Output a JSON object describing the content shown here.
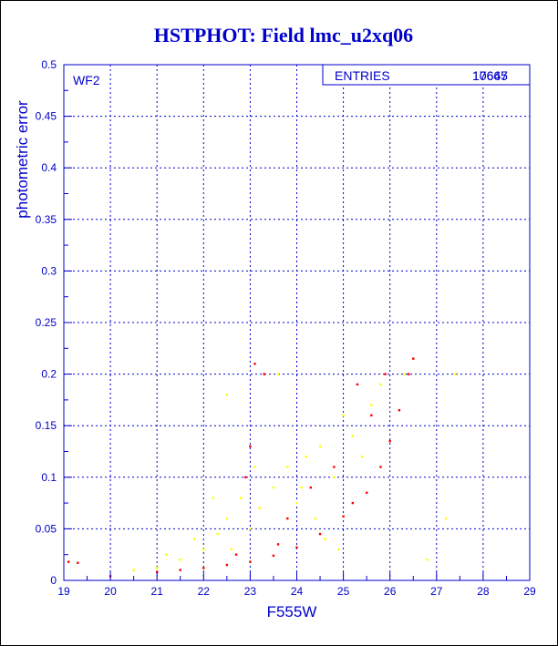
{
  "chart_data": {
    "type": "scatter",
    "title": "HSTPHOT: Field lmc_u2xq06",
    "xlabel": "F555W",
    "ylabel": "photometric error",
    "panel_label": "WF2",
    "xlim": [
      19,
      29
    ],
    "ylim": [
      0,
      0.5
    ],
    "x_ticks": [
      "19",
      "20",
      "21",
      "22",
      "23",
      "24",
      "25",
      "26",
      "27",
      "28",
      "29"
    ],
    "y_ticks": [
      "0",
      "0.05",
      "0.1",
      "0.15",
      "0.2",
      "0.25",
      "0.3",
      "0.35",
      "0.4",
      "0.45",
      "0.5"
    ],
    "grid": true,
    "stats_box": {
      "label": "ENTRIES",
      "values": [
        "17667",
        "10645"
      ]
    },
    "series": [
      {
        "color": "#ffff00",
        "description": "broad scatter above the main sequence",
        "points": [
          [
            21.0,
            0.012
          ],
          [
            21.5,
            0.02
          ],
          [
            22.0,
            0.03
          ],
          [
            22.3,
            0.045
          ],
          [
            22.5,
            0.06
          ],
          [
            22.8,
            0.08
          ],
          [
            23.0,
            0.05
          ],
          [
            23.2,
            0.07
          ],
          [
            23.5,
            0.09
          ],
          [
            23.8,
            0.11
          ],
          [
            24.0,
            0.075
          ],
          [
            24.2,
            0.12
          ],
          [
            24.5,
            0.13
          ],
          [
            24.8,
            0.1
          ],
          [
            25.0,
            0.16
          ],
          [
            25.2,
            0.14
          ],
          [
            22.5,
            0.18
          ],
          [
            23.6,
            0.2
          ],
          [
            25.6,
            0.17
          ],
          [
            24.1,
            0.09
          ],
          [
            23.1,
            0.11
          ],
          [
            22.2,
            0.08
          ],
          [
            21.8,
            0.04
          ],
          [
            24.4,
            0.06
          ],
          [
            25.4,
            0.12
          ],
          [
            26.3,
            0.2
          ],
          [
            25.8,
            0.19
          ],
          [
            26.8,
            0.02
          ],
          [
            27.2,
            0.06
          ],
          [
            27.4,
            0.2
          ],
          [
            24.6,
            0.04
          ],
          [
            24.9,
            0.03
          ],
          [
            22.6,
            0.03
          ],
          [
            21.2,
            0.025
          ],
          [
            20.5,
            0.01
          ]
        ]
      },
      {
        "color": "#ff0000",
        "description": "main error sequence",
        "points": [
          [
            19.1,
            0.018
          ],
          [
            19.3,
            0.017
          ],
          [
            20.0,
            0.004
          ],
          [
            21.0,
            0.008
          ],
          [
            21.5,
            0.01
          ],
          [
            22.0,
            0.012
          ],
          [
            22.5,
            0.015
          ],
          [
            23.0,
            0.018
          ],
          [
            23.5,
            0.024
          ],
          [
            24.0,
            0.032
          ],
          [
            24.5,
            0.045
          ],
          [
            25.0,
            0.062
          ],
          [
            25.5,
            0.085
          ],
          [
            25.8,
            0.11
          ],
          [
            26.0,
            0.135
          ],
          [
            26.2,
            0.165
          ],
          [
            26.4,
            0.2
          ],
          [
            26.5,
            0.215
          ],
          [
            23.1,
            0.21
          ],
          [
            23.3,
            0.2
          ],
          [
            23.0,
            0.13
          ],
          [
            22.9,
            0.1
          ],
          [
            25.3,
            0.19
          ],
          [
            25.6,
            0.16
          ],
          [
            24.8,
            0.11
          ],
          [
            24.3,
            0.09
          ],
          [
            23.8,
            0.06
          ],
          [
            25.2,
            0.075
          ],
          [
            25.9,
            0.2
          ],
          [
            22.7,
            0.025
          ],
          [
            23.6,
            0.035
          ]
        ]
      }
    ]
  }
}
